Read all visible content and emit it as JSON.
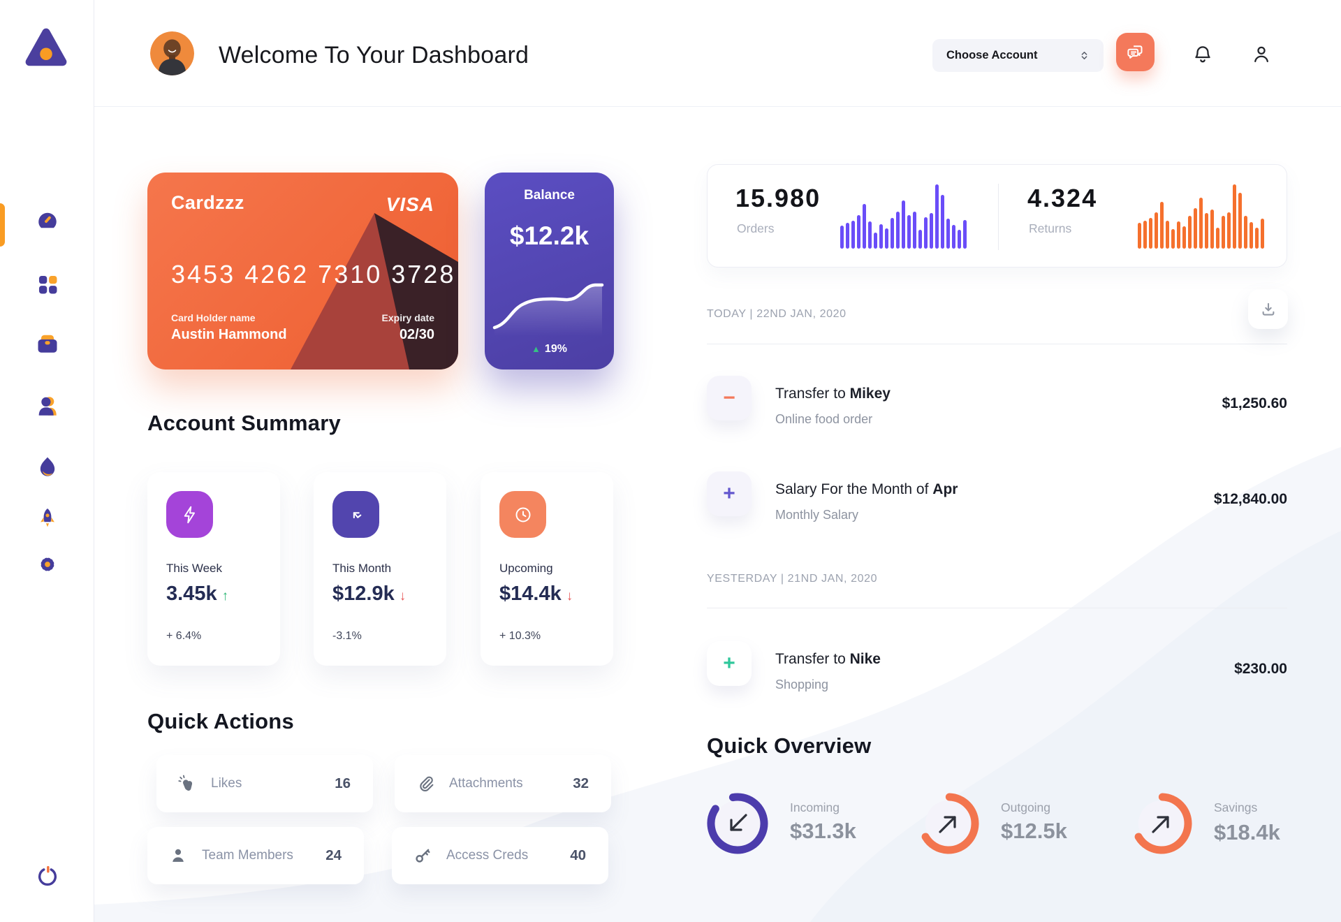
{
  "colors": {
    "green": "#2BB673",
    "red": "#E85A5A"
  },
  "header": {
    "title": "Welcome To Your Dashboard",
    "account_selector": "Choose Account"
  },
  "sidebar_items": [
    "dashboard",
    "apps-grid",
    "briefcase",
    "team",
    "trending",
    "rocket",
    "settings",
    "power"
  ],
  "credit_card": {
    "name": "Cardzzz",
    "brand": "VISA",
    "number": "3453 4262 7310 3728",
    "holder_label": "Card Holder name",
    "holder": "Austin Hammond",
    "expiry_label": "Expiry date",
    "expiry": "02/30"
  },
  "balance_card": {
    "label": "Balance",
    "value": "$12.2k",
    "change": "19%"
  },
  "stats": {
    "orders": {
      "value": "15.980",
      "label": "Orders",
      "color": "#6A4DF8",
      "bars": [
        36,
        40,
        44,
        52,
        70,
        42,
        25,
        38,
        31,
        48,
        58,
        75,
        52,
        58,
        29,
        49,
        55,
        100,
        84,
        47,
        37,
        29,
        45
      ]
    },
    "returns": {
      "value": "4.324",
      "label": "Returns",
      "color": "#F5702D",
      "bars": [
        40,
        44,
        48,
        56,
        73,
        43,
        30,
        42,
        35,
        51,
        63,
        79,
        55,
        61,
        33,
        51,
        57,
        100,
        87,
        51,
        41,
        33,
        47
      ]
    }
  },
  "account_summary": {
    "title": "Account Summary",
    "cards": [
      {
        "label": "This Week",
        "value": "3.45k",
        "trend": "up",
        "delta": "+ 6.4%",
        "icon": "lightning",
        "icon_bg": "#A444D9"
      },
      {
        "label": "This Month",
        "value": "$12.9k",
        "trend": "down",
        "delta": "-3.1%",
        "icon": "arrow-up-left",
        "icon_bg": "#5245AE"
      },
      {
        "label": "Upcoming",
        "value": "$14.4k",
        "trend": "down",
        "delta": "+ 10.3%",
        "icon": "clock",
        "icon_bg": "#F4855F"
      }
    ]
  },
  "quick_actions": {
    "title": "Quick Actions",
    "items": [
      {
        "label": "Likes",
        "count": "16"
      },
      {
        "label": "Attachments",
        "count": "32"
      },
      {
        "label": "Team Members",
        "count": "24"
      },
      {
        "label": "Access Creds",
        "count": "40"
      }
    ]
  },
  "transactions": {
    "groups": [
      {
        "date_label": "TODAY | 22ND JAN, 2020",
        "items": [
          {
            "sign": "minus",
            "sign_color": "#F4795B",
            "title": "Transfer to ",
            "title_bold": "Mikey",
            "subtitle": "Online food order",
            "amount": "$1,250.60"
          },
          {
            "sign": "plus",
            "sign_color": "#6357CE",
            "title": "Salary For the Month of ",
            "title_bold": "Apr",
            "subtitle": "Monthly Salary",
            "amount": "$12,840.00"
          }
        ]
      },
      {
        "date_label": "YESTERDAY | 21ND JAN, 2020",
        "items": [
          {
            "sign": "plus",
            "sign_color": "#2FC79B",
            "title": "Transfer to ",
            "title_bold": "Nike",
            "subtitle": "Shopping",
            "amount": "$230.00"
          }
        ]
      }
    ]
  },
  "quick_overview": {
    "title": "Quick Overview",
    "rings": [
      {
        "label": "Incoming",
        "value": "$31.3k",
        "color": "#4C3CAC",
        "percent": 87,
        "rotation": -100,
        "arrow": "down-left"
      },
      {
        "label": "Outgoing",
        "value": "$12.5k",
        "color": "#F3754E",
        "percent": 66,
        "rotation": -88,
        "arrow": "up-right"
      },
      {
        "label": "Savings",
        "value": "$18.4k",
        "color": "#F3754E",
        "percent": 66,
        "rotation": -88,
        "arrow": "up-right"
      }
    ]
  }
}
